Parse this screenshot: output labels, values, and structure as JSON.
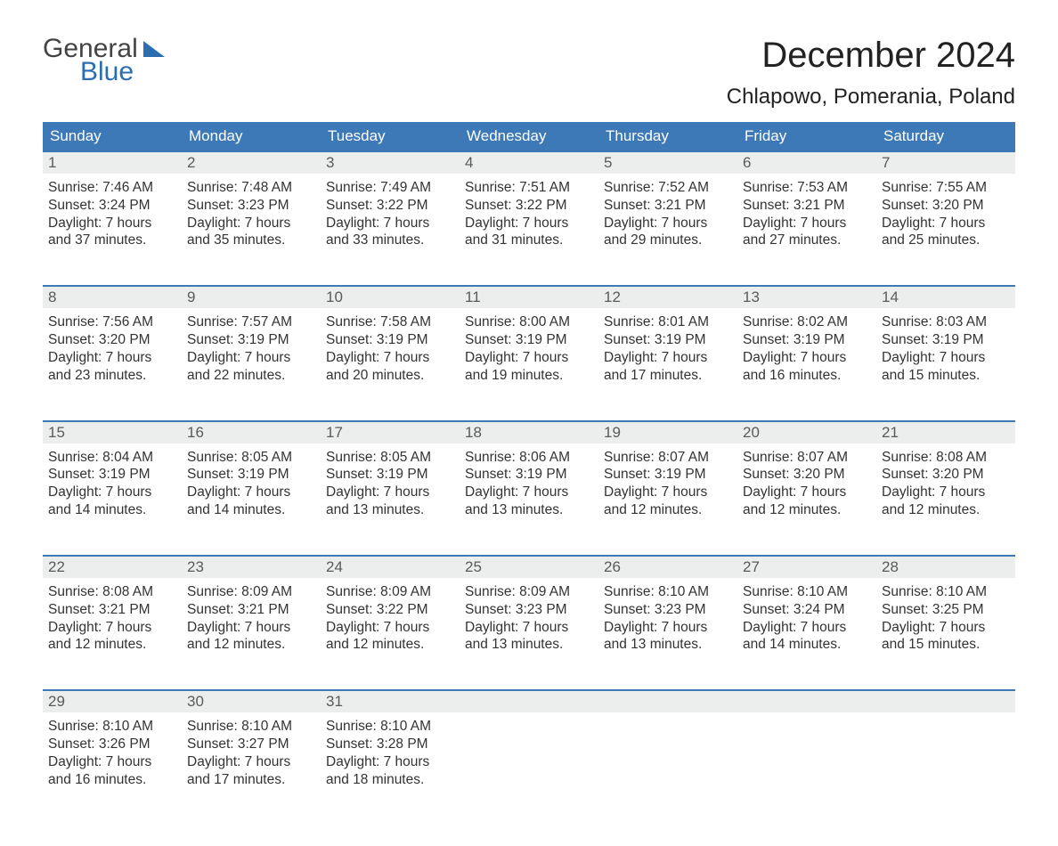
{
  "logo": {
    "word1": "General",
    "word2": "Blue"
  },
  "title": "December 2024",
  "location": "Chlapowo, Pomerania, Poland",
  "colors": {
    "header_bg": "#3c79b6",
    "header_text": "#ffffff",
    "daynum_bg": "#eceded",
    "week_border": "#3c79b6",
    "logo_accent": "#2a6db1",
    "body_text": "#333333"
  },
  "weekdays": [
    "Sunday",
    "Monday",
    "Tuesday",
    "Wednesday",
    "Thursday",
    "Friday",
    "Saturday"
  ],
  "weeks": [
    [
      {
        "n": "1",
        "sunrise": "7:46 AM",
        "sunset": "3:24 PM",
        "dl1": "Daylight: 7 hours",
        "dl2": "and 37 minutes."
      },
      {
        "n": "2",
        "sunrise": "7:48 AM",
        "sunset": "3:23 PM",
        "dl1": "Daylight: 7 hours",
        "dl2": "and 35 minutes."
      },
      {
        "n": "3",
        "sunrise": "7:49 AM",
        "sunset": "3:22 PM",
        "dl1": "Daylight: 7 hours",
        "dl2": "and 33 minutes."
      },
      {
        "n": "4",
        "sunrise": "7:51 AM",
        "sunset": "3:22 PM",
        "dl1": "Daylight: 7 hours",
        "dl2": "and 31 minutes."
      },
      {
        "n": "5",
        "sunrise": "7:52 AM",
        "sunset": "3:21 PM",
        "dl1": "Daylight: 7 hours",
        "dl2": "and 29 minutes."
      },
      {
        "n": "6",
        "sunrise": "7:53 AM",
        "sunset": "3:21 PM",
        "dl1": "Daylight: 7 hours",
        "dl2": "and 27 minutes."
      },
      {
        "n": "7",
        "sunrise": "7:55 AM",
        "sunset": "3:20 PM",
        "dl1": "Daylight: 7 hours",
        "dl2": "and 25 minutes."
      }
    ],
    [
      {
        "n": "8",
        "sunrise": "7:56 AM",
        "sunset": "3:20 PM",
        "dl1": "Daylight: 7 hours",
        "dl2": "and 23 minutes."
      },
      {
        "n": "9",
        "sunrise": "7:57 AM",
        "sunset": "3:19 PM",
        "dl1": "Daylight: 7 hours",
        "dl2": "and 22 minutes."
      },
      {
        "n": "10",
        "sunrise": "7:58 AM",
        "sunset": "3:19 PM",
        "dl1": "Daylight: 7 hours",
        "dl2": "and 20 minutes."
      },
      {
        "n": "11",
        "sunrise": "8:00 AM",
        "sunset": "3:19 PM",
        "dl1": "Daylight: 7 hours",
        "dl2": "and 19 minutes."
      },
      {
        "n": "12",
        "sunrise": "8:01 AM",
        "sunset": "3:19 PM",
        "dl1": "Daylight: 7 hours",
        "dl2": "and 17 minutes."
      },
      {
        "n": "13",
        "sunrise": "8:02 AM",
        "sunset": "3:19 PM",
        "dl1": "Daylight: 7 hours",
        "dl2": "and 16 minutes."
      },
      {
        "n": "14",
        "sunrise": "8:03 AM",
        "sunset": "3:19 PM",
        "dl1": "Daylight: 7 hours",
        "dl2": "and 15 minutes."
      }
    ],
    [
      {
        "n": "15",
        "sunrise": "8:04 AM",
        "sunset": "3:19 PM",
        "dl1": "Daylight: 7 hours",
        "dl2": "and 14 minutes."
      },
      {
        "n": "16",
        "sunrise": "8:05 AM",
        "sunset": "3:19 PM",
        "dl1": "Daylight: 7 hours",
        "dl2": "and 14 minutes."
      },
      {
        "n": "17",
        "sunrise": "8:05 AM",
        "sunset": "3:19 PM",
        "dl1": "Daylight: 7 hours",
        "dl2": "and 13 minutes."
      },
      {
        "n": "18",
        "sunrise": "8:06 AM",
        "sunset": "3:19 PM",
        "dl1": "Daylight: 7 hours",
        "dl2": "and 13 minutes."
      },
      {
        "n": "19",
        "sunrise": "8:07 AM",
        "sunset": "3:19 PM",
        "dl1": "Daylight: 7 hours",
        "dl2": "and 12 minutes."
      },
      {
        "n": "20",
        "sunrise": "8:07 AM",
        "sunset": "3:20 PM",
        "dl1": "Daylight: 7 hours",
        "dl2": "and 12 minutes."
      },
      {
        "n": "21",
        "sunrise": "8:08 AM",
        "sunset": "3:20 PM",
        "dl1": "Daylight: 7 hours",
        "dl2": "and 12 minutes."
      }
    ],
    [
      {
        "n": "22",
        "sunrise": "8:08 AM",
        "sunset": "3:21 PM",
        "dl1": "Daylight: 7 hours",
        "dl2": "and 12 minutes."
      },
      {
        "n": "23",
        "sunrise": "8:09 AM",
        "sunset": "3:21 PM",
        "dl1": "Daylight: 7 hours",
        "dl2": "and 12 minutes."
      },
      {
        "n": "24",
        "sunrise": "8:09 AM",
        "sunset": "3:22 PM",
        "dl1": "Daylight: 7 hours",
        "dl2": "and 12 minutes."
      },
      {
        "n": "25",
        "sunrise": "8:09 AM",
        "sunset": "3:23 PM",
        "dl1": "Daylight: 7 hours",
        "dl2": "and 13 minutes."
      },
      {
        "n": "26",
        "sunrise": "8:10 AM",
        "sunset": "3:23 PM",
        "dl1": "Daylight: 7 hours",
        "dl2": "and 13 minutes."
      },
      {
        "n": "27",
        "sunrise": "8:10 AM",
        "sunset": "3:24 PM",
        "dl1": "Daylight: 7 hours",
        "dl2": "and 14 minutes."
      },
      {
        "n": "28",
        "sunrise": "8:10 AM",
        "sunset": "3:25 PM",
        "dl1": "Daylight: 7 hours",
        "dl2": "and 15 minutes."
      }
    ],
    [
      {
        "n": "29",
        "sunrise": "8:10 AM",
        "sunset": "3:26 PM",
        "dl1": "Daylight: 7 hours",
        "dl2": "and 16 minutes."
      },
      {
        "n": "30",
        "sunrise": "8:10 AM",
        "sunset": "3:27 PM",
        "dl1": "Daylight: 7 hours",
        "dl2": "and 17 minutes."
      },
      {
        "n": "31",
        "sunrise": "8:10 AM",
        "sunset": "3:28 PM",
        "dl1": "Daylight: 7 hours",
        "dl2": "and 18 minutes."
      },
      null,
      null,
      null,
      null
    ]
  ],
  "labels": {
    "sunrise_prefix": "Sunrise: ",
    "sunset_prefix": "Sunset: "
  }
}
